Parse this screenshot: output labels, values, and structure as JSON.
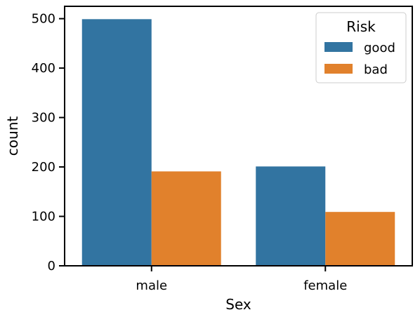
{
  "chart_data": {
    "type": "bar",
    "xlabel": "Sex",
    "ylabel": "count",
    "categories": [
      "male",
      "female"
    ],
    "series": [
      {
        "name": "good",
        "values": [
          499,
          201
        ],
        "color": "#3274a1"
      },
      {
        "name": "bad",
        "values": [
          191,
          109
        ],
        "color": "#e1812c"
      }
    ],
    "ylim": [
      0,
      525
    ],
    "yticks": [
      0,
      100,
      200,
      300,
      400,
      500
    ],
    "legend": {
      "title": "Risk",
      "placement": "top-right"
    },
    "grid": false
  }
}
